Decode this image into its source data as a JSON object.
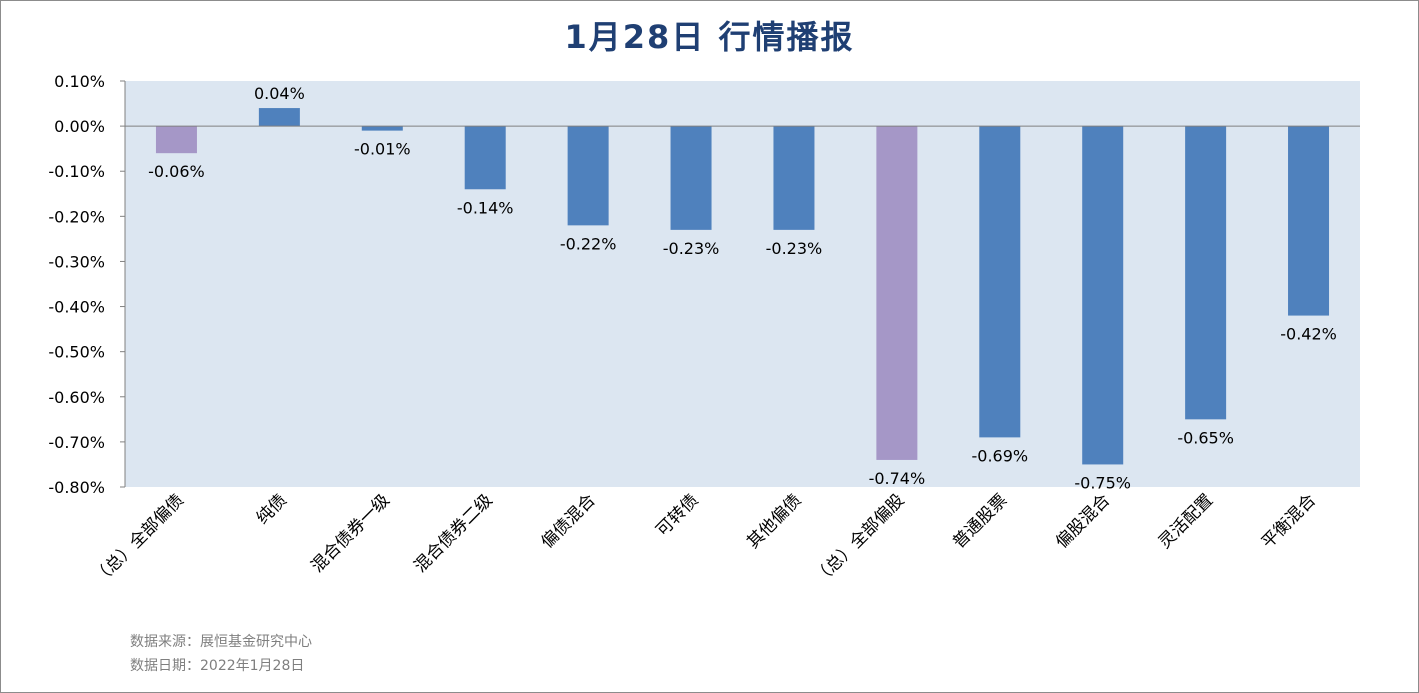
{
  "title": "1月28日  行情播报",
  "footer": {
    "source": "数据来源：展恒基金研究中心",
    "date": "数据日期：2022年1月28日"
  },
  "colors": {
    "plot_background": "#dce6f1",
    "bar_blue": "#4f81bd",
    "bar_purple": "#a597c7",
    "title": "#1f3f73"
  },
  "chart_data": {
    "type": "bar",
    "categories": [
      "（总）全部偏债",
      "纯债",
      "混合债券一级",
      "混合债券二级",
      "偏债混合",
      "可转债",
      "其他偏债",
      "（总）全部偏股",
      "普通股票",
      "偏股混合",
      "灵活配置",
      "平衡混合"
    ],
    "values": [
      -0.06,
      0.04,
      -0.01,
      -0.14,
      -0.22,
      -0.23,
      -0.23,
      -0.74,
      -0.69,
      -0.75,
      -0.65,
      -0.42
    ],
    "value_labels": [
      "-0.06%",
      "0.04%",
      "-0.01%",
      "-0.14%",
      "-0.22%",
      "-0.23%",
      "-0.23%",
      "-0.74%",
      "-0.69%",
      "-0.75%",
      "-0.65%",
      "-0.42%"
    ],
    "highlight": [
      true,
      false,
      false,
      false,
      false,
      false,
      false,
      true,
      false,
      false,
      false,
      false
    ],
    "ylim": [
      -0.8,
      0.1
    ],
    "yticks": [
      0.1,
      0.0,
      -0.1,
      -0.2,
      -0.3,
      -0.4,
      -0.5,
      -0.6,
      -0.7,
      -0.8
    ],
    "ytick_labels": [
      "0.10%",
      "0.00%",
      "-0.10%",
      "-0.20%",
      "-0.30%",
      "-0.40%",
      "-0.50%",
      "-0.60%",
      "-0.70%",
      "-0.80%"
    ],
    "grid": false,
    "legend": "none",
    "xlabel": "",
    "ylabel": ""
  }
}
